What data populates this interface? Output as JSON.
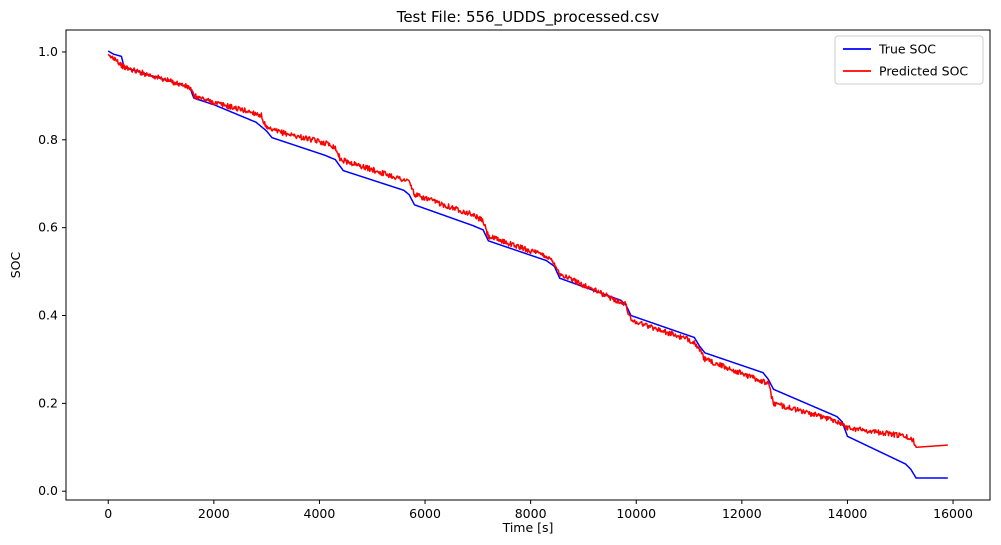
{
  "chart_data": {
    "type": "line",
    "title": "Test File: 556_UDDS_processed.csv",
    "xlabel": "Time [s]",
    "ylabel": "SOC",
    "xlim": [
      -800,
      16700
    ],
    "ylim": [
      -0.02,
      1.05
    ],
    "xticks": [
      0,
      2000,
      4000,
      6000,
      8000,
      10000,
      12000,
      14000,
      16000
    ],
    "yticks": [
      0.0,
      0.2,
      0.4,
      0.6,
      0.8,
      1.0
    ],
    "xtick_labels": [
      "0",
      "2000",
      "4000",
      "6000",
      "8000",
      "10000",
      "12000",
      "14000",
      "16000"
    ],
    "ytick_labels": [
      "0.0",
      "0.2",
      "0.4",
      "0.6",
      "0.8",
      "1.0"
    ],
    "grid": false,
    "legend_position": "top-right",
    "series": [
      {
        "name": "True SOC",
        "color": "#0000ff",
        "noise": 0,
        "x": [
          0,
          100,
          250,
          300,
          1400,
          1550,
          1620,
          2000,
          2800,
          3000,
          3100,
          4100,
          4300,
          4450,
          5600,
          5700,
          5800,
          6900,
          7100,
          7200,
          8300,
          8450,
          8550,
          9700,
          9800,
          9900,
          11100,
          11200,
          11300,
          12400,
          12500,
          12600,
          13800,
          13900,
          14000,
          15100,
          15200,
          15300,
          15900
        ],
        "y": [
          1.002,
          0.995,
          0.99,
          0.965,
          0.925,
          0.918,
          0.895,
          0.88,
          0.84,
          0.82,
          0.805,
          0.765,
          0.755,
          0.73,
          0.685,
          0.675,
          0.652,
          0.605,
          0.595,
          0.57,
          0.525,
          0.512,
          0.485,
          0.435,
          0.425,
          0.4,
          0.35,
          0.33,
          0.315,
          0.27,
          0.255,
          0.232,
          0.17,
          0.158,
          0.125,
          0.062,
          0.05,
          0.03,
          0.03
        ]
      },
      {
        "name": "Predicted SOC",
        "color": "#ff0000",
        "noise": 0.006,
        "x": [
          0,
          150,
          200,
          300,
          1400,
          1550,
          1620,
          2000,
          2800,
          2900,
          3000,
          4200,
          4300,
          4400,
          5700,
          5800,
          6900,
          7100,
          7200,
          8300,
          8450,
          8550,
          9700,
          9800,
          9900,
          11100,
          11200,
          11300,
          12400,
          12500,
          12600,
          13800,
          13900,
          14000,
          15100,
          15250,
          15300,
          15900
        ],
        "y": [
          0.99,
          0.985,
          0.975,
          0.965,
          0.925,
          0.918,
          0.9,
          0.885,
          0.86,
          0.855,
          0.825,
          0.79,
          0.782,
          0.755,
          0.705,
          0.675,
          0.63,
          0.615,
          0.58,
          0.535,
          0.52,
          0.495,
          0.43,
          0.425,
          0.39,
          0.34,
          0.32,
          0.3,
          0.25,
          0.245,
          0.2,
          0.16,
          0.152,
          0.145,
          0.125,
          0.115,
          0.1,
          0.105
        ]
      }
    ]
  }
}
